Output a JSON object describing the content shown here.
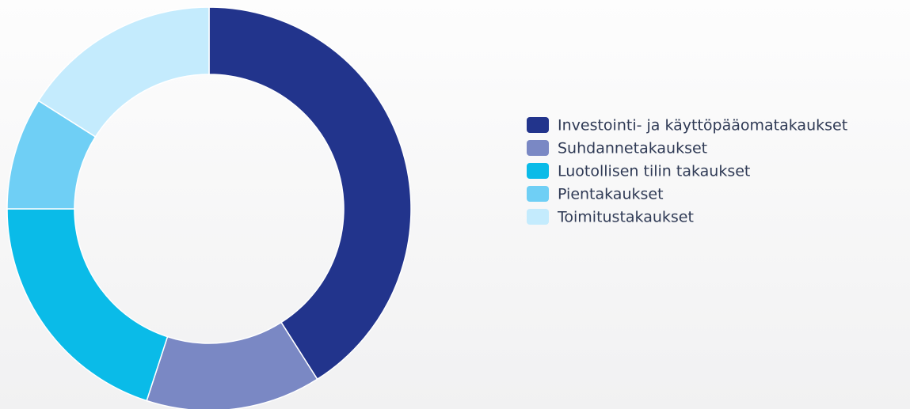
{
  "chart_data": {
    "type": "donut",
    "categories": [
      "Investointi- ja käyttöpääomatakaukset",
      "Suhdannetakaukset",
      "Luotollisen tilin takaukset",
      "Pientakaukset",
      "Toimitustakaukset"
    ],
    "values": [
      41,
      14,
      20,
      9,
      16
    ],
    "colors": [
      "#22348c",
      "#7a88c4",
      "#0abbe8",
      "#6fcff5",
      "#c4ebfd"
    ],
    "legend": "right"
  }
}
